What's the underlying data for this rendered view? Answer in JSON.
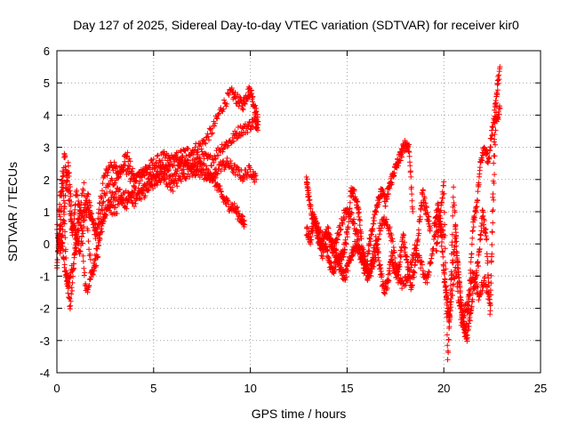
{
  "chart_data": {
    "type": "scatter",
    "title": "Day 127 of 2025, Sidereal Day-to-day VTEC variation (SDTVAR) for receiver kir0",
    "xlabel": "GPS time / hours",
    "ylabel": "SDTVAR / TECUs",
    "xlim": [
      0,
      25
    ],
    "ylim": [
      -4,
      6
    ],
    "xticks": [
      "0",
      "5",
      "10",
      "15",
      "20",
      "25"
    ],
    "yticks": [
      "-4",
      "-3",
      "-2",
      "-1",
      "0",
      "1",
      "2",
      "3",
      "4",
      "5",
      "6"
    ],
    "grid": true,
    "marker": "+",
    "colors": {
      "series": "#ff0000"
    },
    "series": [
      {
        "segments": [
          {
            "x": [
              0.0,
              0.2,
              0.4,
              0.6,
              0.8,
              1.0,
              1.3,
              1.6,
              2.0,
              2.4,
              2.8,
              3.2,
              3.6,
              4.0,
              4.5,
              5.0,
              5.5,
              6.0,
              6.5,
              7.0,
              7.5,
              8.0,
              8.5,
              9.0,
              9.3,
              9.6,
              9.8,
              10.0,
              10.2,
              10.4
            ],
            "y": [
              -0.8,
              1.0,
              2.8,
              1.5,
              0.3,
              1.6,
              0.8,
              1.5,
              0.2,
              2.0,
              2.5,
              2.2,
              2.8,
              2.0,
              2.3,
              2.5,
              2.7,
              2.6,
              2.8,
              2.9,
              3.1,
              3.5,
              4.2,
              4.7,
              4.5,
              4.3,
              4.6,
              4.8,
              4.3,
              3.8
            ]
          },
          {
            "x": [
              0.0,
              0.2,
              0.4,
              0.6,
              0.8,
              1.0,
              1.2,
              1.5,
              1.8,
              2.1,
              2.5,
              3.0,
              3.5,
              4.0,
              4.5,
              5.0,
              5.5,
              6.0,
              6.5,
              7.0,
              7.5,
              8.0,
              8.5,
              9.0,
              9.4,
              9.8,
              10.2,
              10.4
            ],
            "y": [
              0.5,
              -0.3,
              1.2,
              2.5,
              0.6,
              0.2,
              -0.2,
              1.2,
              0.8,
              0.4,
              1.6,
              2.0,
              2.4,
              1.9,
              2.2,
              2.0,
              2.3,
              2.6,
              2.4,
              2.5,
              2.7,
              2.6,
              3.0,
              3.2,
              3.5,
              3.6,
              3.8,
              3.7
            ]
          },
          {
            "x": [
              0.0,
              0.2,
              0.4,
              0.6,
              0.9,
              1.2,
              1.5,
              1.8,
              2.1,
              2.4,
              2.8,
              3.2,
              3.6,
              4.0,
              4.5,
              5.0,
              5.5,
              6.0,
              6.5,
              7.0,
              7.5,
              8.0,
              8.4,
              8.8,
              9.2,
              9.6,
              10.0,
              10.3
            ],
            "y": [
              -0.5,
              0.6,
              -0.8,
              -1.2,
              -0.5,
              0.9,
              -1.5,
              -0.9,
              -0.4,
              0.8,
              1.4,
              1.6,
              1.2,
              1.7,
              1.5,
              1.9,
              2.0,
              1.8,
              2.1,
              2.3,
              2.2,
              2.0,
              2.4,
              2.5,
              2.3,
              2.1,
              2.3,
              2.0
            ]
          },
          {
            "x": [
              0.1,
              0.3,
              0.5,
              0.7,
              1.0,
              1.4,
              1.8,
              2.2,
              2.6,
              3.0,
              3.5,
              4.0,
              4.5,
              5.0,
              5.5,
              6.0,
              6.5,
              7.0,
              7.5,
              8.0,
              8.3,
              8.6,
              8.9,
              9.2,
              9.5,
              9.7
            ],
            "y": [
              1.0,
              2.2,
              -1.0,
              -2.0,
              0.3,
              1.8,
              -1.0,
              0.4,
              1.2,
              1.0,
              1.5,
              1.3,
              1.8,
              2.2,
              2.4,
              2.0,
              2.6,
              2.3,
              2.4,
              2.1,
              1.8,
              1.4,
              1.2,
              1.1,
              0.8,
              0.6
            ]
          },
          {
            "x": [
              12.9,
              13.0,
              13.2,
              13.4,
              13.6,
              13.8,
              14.0,
              14.2,
              14.4,
              14.6,
              14.8,
              15.0,
              15.2,
              15.4,
              15.6,
              15.8,
              16.0,
              16.2,
              16.4,
              16.6,
              16.8,
              17.0,
              17.2,
              17.4,
              17.6,
              17.8,
              18.0,
              18.2,
              18.4
            ],
            "y": [
              2.1,
              1.5,
              0.9,
              0.6,
              0.3,
              0.1,
              0.4,
              0.0,
              -0.3,
              -0.5,
              -0.3,
              0.3,
              1.6,
              1.5,
              1.0,
              -0.2,
              -0.7,
              0.2,
              0.8,
              1.4,
              1.6,
              1.3,
              1.8,
              2.2,
              2.5,
              2.8,
              3.1,
              3.0,
              1.0
            ]
          },
          {
            "x": [
              12.9,
              13.1,
              13.3,
              13.5,
              13.7,
              13.9,
              14.1,
              14.3,
              14.5,
              14.7,
              14.9,
              15.1,
              15.3,
              15.5,
              15.7,
              15.9,
              16.1,
              16.3,
              16.5,
              16.7,
              16.9,
              17.1,
              17.3,
              17.5,
              17.7,
              17.9,
              18.1,
              18.3,
              18.5,
              18.7,
              18.9,
              19.1,
              19.3
            ],
            "y": [
              0.4,
              0.1,
              0.8,
              0.2,
              -0.3,
              -0.1,
              -0.6,
              -0.8,
              -0.4,
              -0.9,
              -1.0,
              -0.6,
              -0.2,
              0.0,
              -0.4,
              -0.8,
              -1.0,
              -0.5,
              0.1,
              -0.7,
              -1.5,
              -1.2,
              -0.4,
              -1.0,
              -0.6,
              0.2,
              -0.5,
              -1.3,
              -0.8,
              0.4,
              1.6,
              1.0,
              0.5
            ]
          },
          {
            "x": [
              14.0,
              14.3,
              14.6,
              14.9,
              15.2,
              15.5,
              15.8,
              16.1,
              16.4,
              16.7,
              17.0,
              17.3,
              17.6,
              17.9,
              18.2,
              18.5,
              18.8,
              19.1,
              19.4,
              19.7,
              20.0
            ],
            "y": [
              0.2,
              -0.2,
              0.4,
              1.0,
              0.9,
              0.3,
              -0.5,
              -1.0,
              -0.6,
              0.5,
              0.8,
              0.2,
              -1.0,
              -1.3,
              -0.9,
              -0.2,
              -0.6,
              -1.2,
              -0.3,
              0.8,
              0.2
            ]
          },
          {
            "x": [
              19.5,
              19.7,
              19.9,
              20.1,
              20.3,
              20.5,
              20.7,
              20.9,
              21.1,
              21.3,
              21.5,
              21.7,
              21.9,
              22.1,
              22.3,
              22.5,
              22.7,
              22.9
            ],
            "y": [
              0.5,
              1.2,
              0.0,
              -1.5,
              -2.5,
              1.6,
              -0.5,
              -2.0,
              -2.8,
              -1.8,
              0.5,
              1.2,
              2.5,
              3.0,
              2.6,
              3.5,
              4.5,
              5.5
            ]
          },
          {
            "x": [
              19.6,
              19.8,
              20.0,
              20.2,
              20.4,
              20.6,
              20.8,
              21.0,
              21.2,
              21.4,
              21.6,
              21.8,
              22.0,
              22.2,
              22.4,
              22.6,
              22.8
            ],
            "y": [
              -0.2,
              0.8,
              1.8,
              -3.6,
              -1.0,
              0.3,
              -1.2,
              -2.5,
              -3.0,
              -2.0,
              -1.2,
              -0.5,
              1.0,
              0.2,
              -2.2,
              3.2,
              5.2
            ]
          },
          {
            "x": [
              20.0,
              20.3,
              20.6,
              20.9,
              21.2,
              21.5,
              21.8,
              22.1,
              22.4,
              22.7,
              22.9
            ],
            "y": [
              -1.0,
              -2.2,
              -0.8,
              -2.4,
              -1.9,
              -0.9,
              -1.6,
              -1.1,
              -1.8,
              3.8,
              4.2
            ]
          }
        ]
      }
    ]
  }
}
